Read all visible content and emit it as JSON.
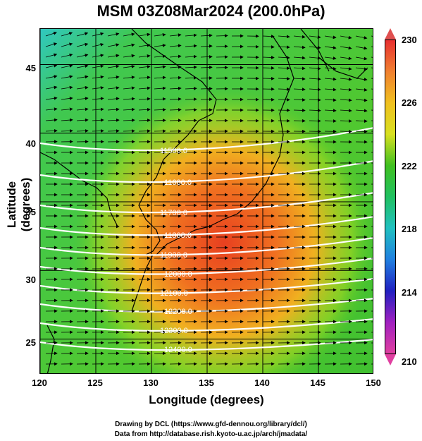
{
  "title": "MSM 03Z08Mar2024 (200.0hPa)",
  "xlabel": "Longitude (degrees)",
  "ylabel": "Latitude  (degrees)",
  "xticks": [
    "120",
    "125",
    "130",
    "135",
    "140",
    "145",
    "150"
  ],
  "yticks": [
    "45",
    "40",
    "35",
    "30",
    "25"
  ],
  "colorbar": {
    "ticks": [
      "230",
      "226",
      "222",
      "218",
      "214",
      "210"
    ],
    "colors": [
      "#e83030",
      "#f08030",
      "#f0c020",
      "#d8e020",
      "#40c020",
      "#20c060",
      "#20c0c0",
      "#2080e0",
      "#2020c0",
      "#a020c0",
      "#e040a0"
    ]
  },
  "contour_labels": [
    "11500.0",
    "11600.0",
    "11700.0",
    "11800.0",
    "11900.0",
    "12000.0",
    "12100.0",
    "12200.0",
    "12300.0",
    "12400.0"
  ],
  "credit": {
    "line1": "Drawing by DCL (https://www.gfd-dennou.org/library/dcl/)",
    "line2": "Data from http://database.rish.kyoto-u.ac.jp/arch/jmadata/"
  },
  "chart_data": {
    "type": "heatmap",
    "title": "MSM 03Z08Mar2024 (200.0hPa)",
    "xlabel": "Longitude (degrees)",
    "ylabel": "Latitude  (degrees)",
    "xlim": [
      120,
      150
    ],
    "ylim": [
      22.4,
      47.6
    ],
    "colorbar_range": [
      210,
      230
    ],
    "contour_levels": [
      11500,
      11600,
      11700,
      11800,
      11900,
      12000,
      12100,
      12200,
      12300,
      12400
    ],
    "overlay": "wind vectors (arrows) and geopotential height contours (white)"
  }
}
